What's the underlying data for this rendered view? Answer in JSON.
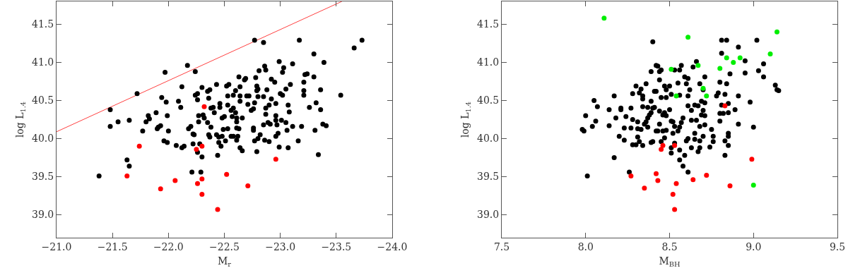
{
  "chart_data": [
    {
      "type": "scatter",
      "xlabel": "M$_{r}$",
      "ylabel": "log L$_{1.4}$",
      "marker": "circle",
      "grid": false,
      "xlim": [
        -21,
        -24
      ],
      "ylim": [
        38.7,
        41.8
      ],
      "xticks": [
        {
          "value": -21,
          "label": "−21.0"
        },
        {
          "value": -21.5,
          "label": "−21.5"
        },
        {
          "value": -22,
          "label": "−22.0"
        },
        {
          "value": -22.5,
          "label": "−22.5"
        },
        {
          "value": -23,
          "label": "−23.0"
        },
        {
          "value": -23.5,
          "label": "−23.5"
        },
        {
          "value": -24,
          "label": "−24.0"
        }
      ],
      "yticks": [
        {
          "value": 39,
          "label": "39.0"
        },
        39.5,
        {
          "value": 40,
          "label": "40.0"
        },
        40.5,
        {
          "value": 41,
          "label": "41.0"
        },
        41.5
      ],
      "series": [
        {
          "type": "line",
          "marker": "none",
          "color": "#ff4040",
          "x": [
            -21,
            -23.55
          ],
          "values": [
            40.09,
            41.8
          ]
        },
        {
          "color": "#000000",
          "x": [
            -21.38,
            -21.48,
            -21.48,
            -21.55,
            -21.63,
            -21.65,
            -21.65,
            -21.72,
            -21.77,
            -21.8,
            -21.82,
            -21.83,
            -21.89,
            -21.9,
            -21.91,
            -21.93,
            -21.94,
            -21.97,
            -21.98,
            -21.96,
            -21.99,
            -21.99,
            -22.0,
            -22.07,
            -22.09,
            -22.11,
            -22.12,
            -22.12,
            -22.14,
            -22.17,
            -22.18,
            -22.2,
            -22.21,
            -22.22,
            -22.23,
            -22.24,
            -22.22,
            -22.24,
            -22.26,
            -22.26,
            -22.27,
            -22.27,
            -22.26,
            -22.28,
            -22.29,
            -22.3,
            -22.3,
            -22.31,
            -22.32,
            -22.35,
            -22.37,
            -22.36,
            -22.35,
            -22.36,
            -22.37,
            -22.38,
            -22.38,
            -22.4,
            -22.41,
            -22.43,
            -22.43,
            -22.44,
            -22.45,
            -22.45,
            -22.46,
            -22.46,
            -22.47,
            -22.48,
            -22.48,
            -22.49,
            -22.5,
            -22.51,
            -22.52,
            -22.53,
            -22.53,
            -22.53,
            -22.54,
            -22.56,
            -22.56,
            -22.58,
            -22.6,
            -22.64,
            -22.62,
            -22.63,
            -22.64,
            -22.58,
            -22.57,
            -22.58,
            -22.6,
            -22.61,
            -22.61,
            -22.61,
            -22.63,
            -22.61,
            -22.64,
            -22.66,
            -22.64,
            -22.66,
            -22.68,
            -22.69,
            -22.7,
            -22.71,
            -22.72,
            -22.74,
            -22.76,
            -22.76,
            -22.76,
            -22.77,
            -22.77,
            -22.78,
            -22.79,
            -22.79,
            -22.8,
            -22.79,
            -22.8,
            -22.8,
            -22.77,
            -22.85,
            -22.81,
            -22.82,
            -22.85,
            -22.85,
            -22.86,
            -22.86,
            -22.87,
            -22.87,
            -22.87,
            -22.88,
            -22.89,
            -22.9,
            -22.9,
            -22.91,
            -22.92,
            -22.92,
            -22.95,
            -22.96,
            -22.96,
            -22.96,
            -22.97,
            -22.96,
            -22.98,
            -22.99,
            -22.99,
            -23.0,
            -23.01,
            -23.02,
            -23.02,
            -23.03,
            -23.05,
            -23.05,
            -23.06,
            -23.07,
            -23.07,
            -23.08,
            -23.09,
            -23.11,
            -23.11,
            -23.16,
            -23.17,
            -23.19,
            -23.21,
            -23.21,
            -23.21,
            -23.22,
            -23.24,
            -23.26,
            -23.3,
            -23.3,
            -23.31,
            -23.32,
            -23.34,
            -23.36,
            -23.36,
            -23.38,
            -23.39,
            -23.41,
            -23.54,
            -23.66,
            -23.73
          ],
          "values": [
            39.51,
            40.38,
            40.16,
            40.22,
            39.72,
            39.64,
            40.24,
            40.59,
            40.1,
            40.22,
            40.3,
            40.26,
            40.34,
            40.13,
            40.15,
            40.17,
            40.54,
            40.87,
            40.48,
            39.97,
            39.95,
            40.3,
            40.1,
            39.91,
            40.49,
            40.41,
            40.68,
            39.88,
            39.9,
            40.96,
            40.13,
            40.16,
            39.56,
            40.06,
            40.05,
            40.88,
            39.93,
            40.57,
            40.51,
            40.59,
            40.3,
            40.22,
            39.82,
            39.93,
            39.56,
            39.76,
            40.67,
            40.31,
            40.27,
            40.62,
            40.64,
            40.53,
            40.21,
            40.05,
            40.02,
            40.15,
            40.4,
            40.41,
            40.34,
            40.71,
            40.05,
            39.78,
            40.02,
            39.95,
            40.46,
            40.41,
            39.9,
            40.03,
            40.27,
            40.12,
            40.29,
            39.97,
            40.69,
            40.56,
            40.44,
            40.13,
            40.71,
            40.03,
            40.37,
            40.57,
            40.63,
            40.56,
            40.03,
            40.81,
            40.68,
            40.03,
            40.29,
            40.4,
            40.34,
            40.27,
            40.22,
            40.14,
            40.13,
            39.98,
            40.49,
            40.27,
            39.88,
            39.84,
            40.77,
            40.79,
            40.56,
            40.45,
            40.56,
            40.37,
            40.39,
            40.14,
            40.11,
            40.47,
            39.97,
            40.8,
            40.69,
            40.63,
            40.65,
            39.83,
            40.0,
            40.55,
            41.29,
            41.26,
            40.89,
            40.05,
            40.18,
            40.55,
            39.98,
            40.95,
            40.9,
            40.32,
            40.4,
            40.64,
            40.21,
            39.96,
            40.44,
            40.19,
            40.52,
            40.78,
            40.74,
            40.46,
            40.3,
            40.03,
            40.18,
            40.24,
            40.07,
            39.89,
            41.01,
            40.59,
            40.24,
            40.87,
            40.57,
            40.93,
            40.65,
            40.21,
            40.11,
            39.88,
            40.44,
            40.35,
            40.71,
            40.98,
            40.16,
            39.97,
            41.29,
            40.16,
            40.74,
            40.63,
            40.57,
            40.84,
            40.85,
            40.41,
            40.81,
            41.11,
            40.11,
            40.47,
            39.79,
            40.38,
            40.64,
            40.19,
            41.0,
            40.17,
            40.57,
            41.19,
            41.29
          ]
        },
        {
          "color": "#ff0000",
          "x": [
            -21.63,
            -21.74,
            -21.93,
            -22.06,
            -22.25,
            -22.32,
            -22.26,
            -22.3,
            -22.3,
            -22.3,
            -22.44,
            -22.52,
            -22.96,
            -22.71
          ],
          "values": [
            39.51,
            39.9,
            39.34,
            39.45,
            39.86,
            40.42,
            39.41,
            39.9,
            39.47,
            39.27,
            39.07,
            39.53,
            39.73,
            39.38
          ]
        }
      ]
    },
    {
      "type": "scatter",
      "xlabel": "M$_{BH}$",
      "ylabel": "log L$_{1.4}$",
      "marker": "circle",
      "grid": false,
      "xlim": [
        7.5,
        9.5
      ],
      "ylim": [
        38.7,
        41.8
      ],
      "xticks": [
        7.5,
        {
          "value": 8,
          "label": "8.0"
        },
        8.5,
        {
          "value": 9,
          "label": "9.0"
        },
        9.5
      ],
      "yticks": [
        {
          "value": 39,
          "label": "39.0"
        },
        39.5,
        {
          "value": 40,
          "label": "40.0"
        },
        40.5,
        {
          "value": 41,
          "label": "41.0"
        },
        41.5
      ],
      "series": [
        {
          "color": "#000000",
          "x": [
            8.01,
            7.98,
            7.99,
            8.0,
            8.04,
            8.05,
            8.06,
            8.07,
            8.14,
            8.14,
            8.17,
            8.17,
            8.18,
            8.2,
            8.21,
            8.21,
            8.23,
            8.23,
            8.24,
            8.26,
            8.27,
            8.27,
            8.28,
            8.28,
            8.28,
            8.3,
            8.3,
            8.31,
            8.31,
            8.31,
            8.32,
            8.32,
            8.33,
            8.33,
            8.34,
            8.34,
            8.34,
            8.34,
            8.35,
            8.36,
            8.36,
            8.37,
            8.37,
            8.37,
            8.38,
            8.39,
            8.39,
            8.39,
            8.39,
            8.4,
            8.41,
            8.41,
            8.42,
            8.42,
            8.43,
            8.44,
            8.45,
            8.44,
            8.42,
            8.45,
            8.47,
            8.48,
            8.48,
            8.5,
            8.51,
            8.53,
            8.55,
            8.56,
            8.56,
            8.57,
            8.59,
            8.6,
            8.61,
            8.61,
            8.61,
            8.62,
            8.63,
            8.64,
            8.65,
            8.66,
            8.67,
            8.68,
            8.69,
            8.7,
            8.71,
            8.71,
            8.7,
            8.4,
            8.44,
            8.46,
            8.47,
            8.48,
            8.5,
            8.51,
            8.52,
            8.53,
            8.55,
            8.56,
            8.57,
            8.58,
            8.52,
            8.44,
            8.43,
            8.46,
            8.48,
            8.4,
            8.45,
            8.47,
            8.51,
            8.51,
            8.53,
            8.56,
            8.59,
            8.56,
            8.58,
            8.61,
            8.6,
            8.61,
            8.63,
            8.63,
            8.65,
            8.65,
            8.66,
            8.67,
            8.68,
            8.68,
            8.68,
            8.69,
            8.7,
            8.71,
            8.71,
            8.74,
            8.75,
            8.76,
            8.76,
            8.78,
            8.79,
            8.8,
            8.8,
            8.8,
            8.81,
            8.81,
            8.81,
            8.82,
            8.83,
            8.83,
            8.83,
            8.84,
            8.84,
            8.85,
            8.85,
            8.85,
            8.85,
            8.85,
            8.86,
            8.89,
            8.91,
            8.91,
            8.91,
            8.95,
            8.95,
            8.98,
            9.0,
            9.02,
            9.03,
            9.06,
            9.06,
            9.13,
            9.14,
            9.15
          ],
          "values": [
            39.51,
            40.12,
            40.1,
            40.3,
            40.16,
            40.5,
            40.23,
            40.42,
            40.17,
            40.38,
            40.56,
            39.75,
            40.27,
            40.03,
            40.38,
            40.4,
            39.98,
            40.14,
            40.29,
            39.56,
            40.14,
            40.4,
            39.92,
            40.59,
            40.25,
            39.92,
            40.69,
            40.13,
            40.22,
            40.02,
            40.6,
            39.96,
            40.65,
            40.12,
            40.56,
            40.52,
            39.91,
            40.42,
            40.19,
            40.72,
            40.22,
            40.41,
            40.15,
            40.27,
            40.31,
            39.95,
            40.88,
            40.49,
            40.34,
            41.27,
            40.41,
            40.62,
            40.96,
            40.1,
            40.95,
            40.88,
            40.9,
            40.77,
            40.62,
            40.54,
            40.69,
            40.64,
            40.54,
            40.69,
            40.58,
            40.9,
            40.73,
            40.9,
            40.57,
            40.96,
            40.81,
            40.72,
            40.56,
            40.43,
            40.79,
            40.64,
            40.37,
            40.94,
            40.44,
            41.01,
            40.43,
            40.72,
            40.49,
            40.64,
            40.81,
            40.47,
            40.37,
            40.4,
            40.36,
            40.31,
            40.34,
            40.3,
            40.38,
            40.23,
            40.22,
            40.16,
            40.1,
            40.15,
            40.21,
            40.27,
            40.07,
            40.19,
            40.1,
            40.1,
            40.11,
            39.96,
            39.96,
            40.01,
            39.88,
            39.81,
            39.94,
            39.85,
            39.78,
            39.72,
            39.64,
            39.56,
            39.97,
            40.0,
            40.24,
            39.88,
            39.99,
            40.07,
            40.24,
            39.83,
            39.88,
            40.16,
            39.97,
            40.31,
            40.03,
            40.18,
            40.3,
            39.89,
            40.12,
            39.96,
            40.03,
            40.56,
            40.6,
            40.74,
            40.23,
            40.33,
            41.12,
            40.44,
            41.29,
            40.33,
            39.97,
            40.58,
            39.78,
            40.72,
            41.29,
            40.03,
            40.34,
            39.91,
            40.07,
            40.46,
            40.85,
            40.38,
            40.56,
            40.19,
            41.2,
            41.02,
            40.86,
            40.48,
            40.15,
            41.29,
            40.89,
            40.98,
            40.81,
            40.7,
            40.64,
            40.63
          ]
        },
        {
          "color": "#ff0000",
          "x": [
            8.27,
            8.35,
            8.42,
            8.43,
            8.45,
            8.46,
            8.53,
            8.54,
            8.52,
            8.53,
            8.64,
            8.72,
            8.83,
            8.86,
            8.99
          ],
          "values": [
            39.51,
            39.35,
            39.54,
            39.45,
            39.86,
            39.91,
            39.91,
            39.41,
            39.27,
            39.07,
            39.46,
            39.52,
            40.43,
            39.38,
            39.73
          ]
        },
        {
          "color": "#00ee00",
          "x": [
            8.11,
            8.61,
            8.67,
            8.51,
            8.8,
            8.84,
            8.88,
            8.92,
            9.1,
            9.14,
            8.7,
            8.72,
            8.54,
            9.0
          ],
          "values": [
            41.58,
            41.33,
            40.96,
            40.91,
            40.92,
            41.06,
            41.0,
            41.06,
            41.11,
            41.4,
            40.66,
            40.56,
            40.56,
            39.39
          ]
        }
      ]
    }
  ]
}
